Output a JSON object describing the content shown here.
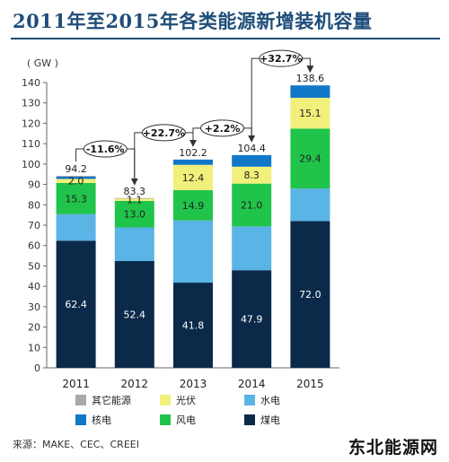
{
  "title": "2011年至2015年各类能源新增装机容量",
  "source": "来源：MAKE、CEC、CREEI",
  "watermark": "东北能源网",
  "chart_data": {
    "type": "bar",
    "stacked": true,
    "unit_label": "( GW )",
    "categories": [
      "2011",
      "2012",
      "2013",
      "2014",
      "2015"
    ],
    "ylim": [
      0,
      140
    ],
    "yticks": [
      0,
      10,
      20,
      30,
      40,
      50,
      60,
      70,
      80,
      90,
      100,
      110,
      120,
      130,
      140
    ],
    "totals": [
      94.2,
      83.3,
      102.2,
      104.4,
      138.6
    ],
    "series": [
      {
        "name": "煤电",
        "color": "#0b2a4a",
        "values": [
          62.4,
          52.4,
          41.8,
          47.9,
          72.0
        ],
        "labels": [
          "62.4",
          "52.4",
          "41.8",
          "47.9",
          "72.0"
        ]
      },
      {
        "name": "水电",
        "color": "#5ab4e5",
        "values": [
          13.0,
          16.5,
          30.5,
          21.5,
          16.0
        ],
        "labels": [
          "",
          "",
          "",
          "",
          ""
        ]
      },
      {
        "name": "风电",
        "color": "#20c44a",
        "values": [
          15.3,
          13.0,
          14.9,
          21.0,
          29.4
        ],
        "labels": [
          "15.3",
          "13.0",
          "14.9",
          "21.0",
          "29.4"
        ]
      },
      {
        "name": "光伏",
        "color": "#f0f07a",
        "values": [
          2.0,
          1.1,
          12.4,
          8.3,
          15.1
        ],
        "labels": [
          "2.0",
          "1.1",
          "12.4",
          "8.3",
          "15.1"
        ]
      },
      {
        "name": "核电",
        "color": "#1178c8",
        "values": [
          1.1,
          0.0,
          2.6,
          5.7,
          6.1
        ],
        "labels": [
          "",
          "",
          "",
          "",
          ""
        ]
      },
      {
        "name": "其它能源",
        "color": "#a8a8a8",
        "values": [
          0.4,
          0.3,
          0.0,
          0.0,
          0.0
        ],
        "labels": [
          "",
          "",
          "",
          "",
          ""
        ]
      }
    ],
    "legend": {
      "placement": "bottom",
      "rows": [
        [
          "其它能源",
          "光伏",
          "水电"
        ],
        [
          "核电",
          "风电",
          "煤电"
        ]
      ]
    },
    "annotations": [
      {
        "text": "-11.6%",
        "from": "2011",
        "to": "2012"
      },
      {
        "text": "+22.7%",
        "from": "2012",
        "to": "2013"
      },
      {
        "text": "+2.2%",
        "from": "2013",
        "to": "2014"
      },
      {
        "text": "+32.7%",
        "from": "2014",
        "to": "2015"
      }
    ]
  }
}
